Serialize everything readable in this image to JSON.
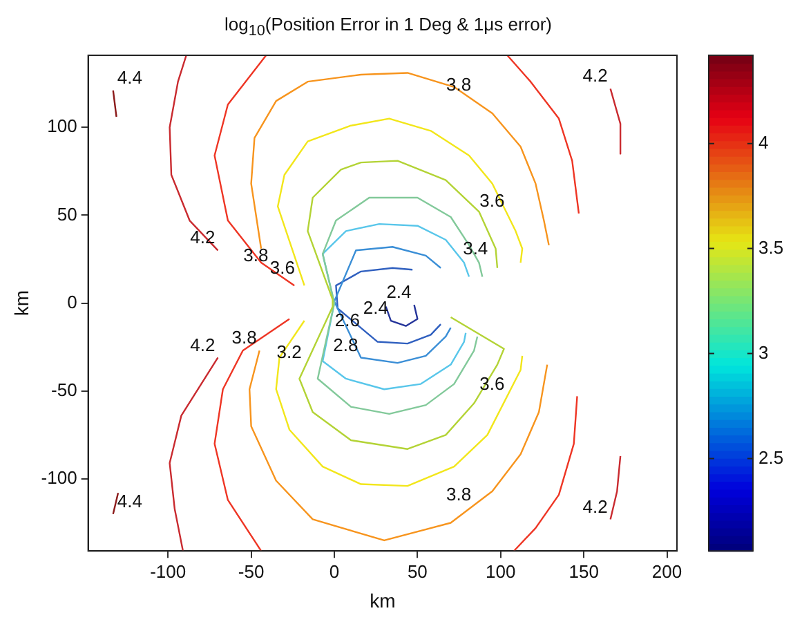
{
  "chart_data": {
    "type": "line",
    "title": "log$_{10}$(Position Error in 1 Deg & 1μs error)",
    "xlabel": "km",
    "ylabel": "km",
    "xlim": [
      -148,
      206
    ],
    "xticks": [
      -100,
      -50,
      0,
      50,
      100,
      150,
      200
    ],
    "ylim": [
      -141,
      141
    ],
    "yticks": [
      -100,
      -50,
      0,
      50,
      100
    ],
    "clim": [
      2.06,
      4.42
    ],
    "cticks": [
      2.5,
      3,
      3.5,
      4
    ],
    "grid": false,
    "legend": false,
    "line_style": "solid",
    "series": [
      {
        "color": "#8b1a1a",
        "x": [
          -133,
          -131
        ],
        "values": [
          121,
          106
        ]
      },
      {
        "color": "#8b1a1a",
        "x": [
          -130,
          -133
        ],
        "values": [
          -108,
          -120
        ]
      },
      {
        "color": "#c92a2f",
        "x": [
          -70,
          -87,
          -98,
          -99,
          -94,
          -89
        ],
        "values": [
          30,
          47,
          73,
          100,
          126,
          141
        ]
      },
      {
        "color": "#c92a2f",
        "x": [
          -70,
          -92,
          -99,
          -96,
          -91
        ],
        "values": [
          -31,
          -64,
          -91,
          -117,
          -141
        ]
      },
      {
        "color": "#c92a2f",
        "x": [
          166,
          172,
          172
        ],
        "values": [
          122,
          102,
          85
        ]
      },
      {
        "color": "#c92a2f",
        "x": [
          172,
          170,
          166
        ],
        "values": [
          -87,
          -107,
          -123
        ]
      },
      {
        "color": "#ee3524",
        "x": [
          -24,
          -44,
          -64,
          -72,
          -64,
          -41
        ],
        "values": [
          10,
          23,
          47,
          84,
          113,
          141
        ]
      },
      {
        "color": "#ee3524",
        "x": [
          104,
          118,
          135,
          143,
          147
        ],
        "values": [
          141,
          126,
          105,
          81,
          51
        ]
      },
      {
        "color": "#ee3524",
        "x": [
          146,
          144,
          135,
          121,
          108
        ],
        "values": [
          -53,
          -80,
          -109,
          -128,
          -141
        ]
      },
      {
        "color": "#ee3524",
        "x": [
          -27,
          -55,
          -67,
          -72,
          -64,
          -44
        ],
        "values": [
          -9,
          -27,
          -49,
          -80,
          -112,
          -141
        ]
      },
      {
        "color": "#f7941d",
        "x": [
          -44,
          -50,
          -48,
          -35,
          -16,
          16,
          44,
          72,
          95,
          112,
          121,
          126,
          129
        ],
        "values": [
          31,
          68,
          94,
          115,
          126,
          130,
          131,
          123,
          108,
          89,
          68,
          47,
          33
        ]
      },
      {
        "color": "#f7941d",
        "x": [
          -45,
          -51,
          -50,
          -35,
          -13,
          30,
          70,
          95,
          112,
          123,
          128
        ],
        "values": [
          -27,
          -49,
          -70,
          -101,
          -123,
          -135,
          -125,
          -107,
          -86,
          -62,
          -35
        ]
      },
      {
        "color": "#f2e61a",
        "x": [
          -18,
          -34,
          -30,
          -16,
          10,
          33,
          58,
          81,
          95,
          109,
          113,
          112
        ],
        "values": [
          10,
          55,
          73,
          92,
          101,
          105,
          98,
          84,
          68,
          41,
          31,
          23
        ]
      },
      {
        "color": "#f2e61a",
        "x": [
          -18,
          -33,
          -35,
          -27,
          -7,
          16,
          44,
          72,
          92,
          112,
          113
        ],
        "values": [
          -10,
          -31,
          -49,
          -72,
          -93,
          -103,
          -104,
          -93,
          -75,
          -38,
          -30
        ]
      },
      {
        "color": "#b3d335",
        "x": [
          98,
          97,
          87,
          67,
          38,
          16,
          4,
          -13,
          -16,
          -1,
          -1,
          -21,
          -13,
          10,
          44,
          67,
          84,
          98,
          102,
          70
        ],
        "values": [
          20,
          31,
          52,
          70,
          81,
          80,
          76,
          60,
          41,
          2,
          -2,
          -43,
          -62,
          -78,
          -83,
          -75,
          -57,
          -35,
          -26,
          -8
        ]
      },
      {
        "color": "#82c99a",
        "x": [
          89,
          87,
          81,
          70,
          50,
          21,
          1,
          -7,
          0,
          -10,
          10,
          33,
          55,
          72,
          84,
          86
        ],
        "values": [
          15,
          23,
          33,
          49,
          60,
          60,
          47,
          28,
          0,
          -43,
          -59,
          -63,
          -58,
          -46,
          -27,
          -19
        ]
      },
      {
        "color": "#58c6ea",
        "x": [
          81,
          78,
          67,
          50,
          27,
          7,
          -7,
          0,
          -7,
          7,
          30,
          52,
          70,
          78,
          79
        ],
        "values": [
          15,
          23,
          36,
          44,
          45,
          41,
          28,
          0,
          -33,
          -43,
          -49,
          -46,
          -35,
          -22,
          -17
        ]
      },
      {
        "color": "#3a8ed6",
        "x": [
          64,
          55,
          35,
          13,
          0,
          1,
          16,
          38,
          55,
          67,
          70
        ],
        "values": [
          20,
          27,
          32,
          30,
          1,
          -1,
          -31,
          -34,
          -30,
          -19,
          -14
        ]
      },
      {
        "color": "#2f5fbf",
        "x": [
          47,
          35,
          16,
          1,
          2,
          26,
          44,
          58,
          64
        ],
        "values": [
          19,
          20,
          18,
          10,
          -3,
          -22,
          -23,
          -18,
          -12
        ]
      },
      {
        "color": "#24349a",
        "x": [
          31,
          34,
          43,
          50,
          48
        ],
        "values": [
          -2,
          -10,
          -13,
          -9,
          -1
        ]
      }
    ],
    "annotations": [
      {
        "text": "4.4",
        "x": -133,
        "y": 121
      },
      {
        "text": "4.4",
        "x": -133,
        "y": -120
      },
      {
        "text": "4.2",
        "x": -70,
        "y": 30
      },
      {
        "text": "3.8",
        "x": -38,
        "y": 20
      },
      {
        "text": "3.6",
        "x": -22,
        "y": 13
      },
      {
        "text": "3.8",
        "x": 84,
        "y": 117
      },
      {
        "text": "3.6",
        "x": 104,
        "y": 51
      },
      {
        "text": "4.2",
        "x": 166,
        "y": 122
      },
      {
        "text": "3.4",
        "x": 94,
        "y": 24
      },
      {
        "text": "2.4",
        "x": 48,
        "y": -1
      },
      {
        "text": "2.4",
        "x": 34,
        "y": -10
      },
      {
        "text": "2.6",
        "x": 17,
        "y": -17
      },
      {
        "text": "2.8",
        "x": 16,
        "y": -31
      },
      {
        "text": "3.2",
        "x": -18,
        "y": -35
      },
      {
        "text": "4.2",
        "x": -70,
        "y": -31
      },
      {
        "text": "3.8",
        "x": -45,
        "y": -27
      },
      {
        "text": "3.6",
        "x": 104,
        "y": -53
      },
      {
        "text": "3.8",
        "x": 84,
        "y": -116
      },
      {
        "text": "4.2",
        "x": 166,
        "y": -123
      }
    ]
  }
}
